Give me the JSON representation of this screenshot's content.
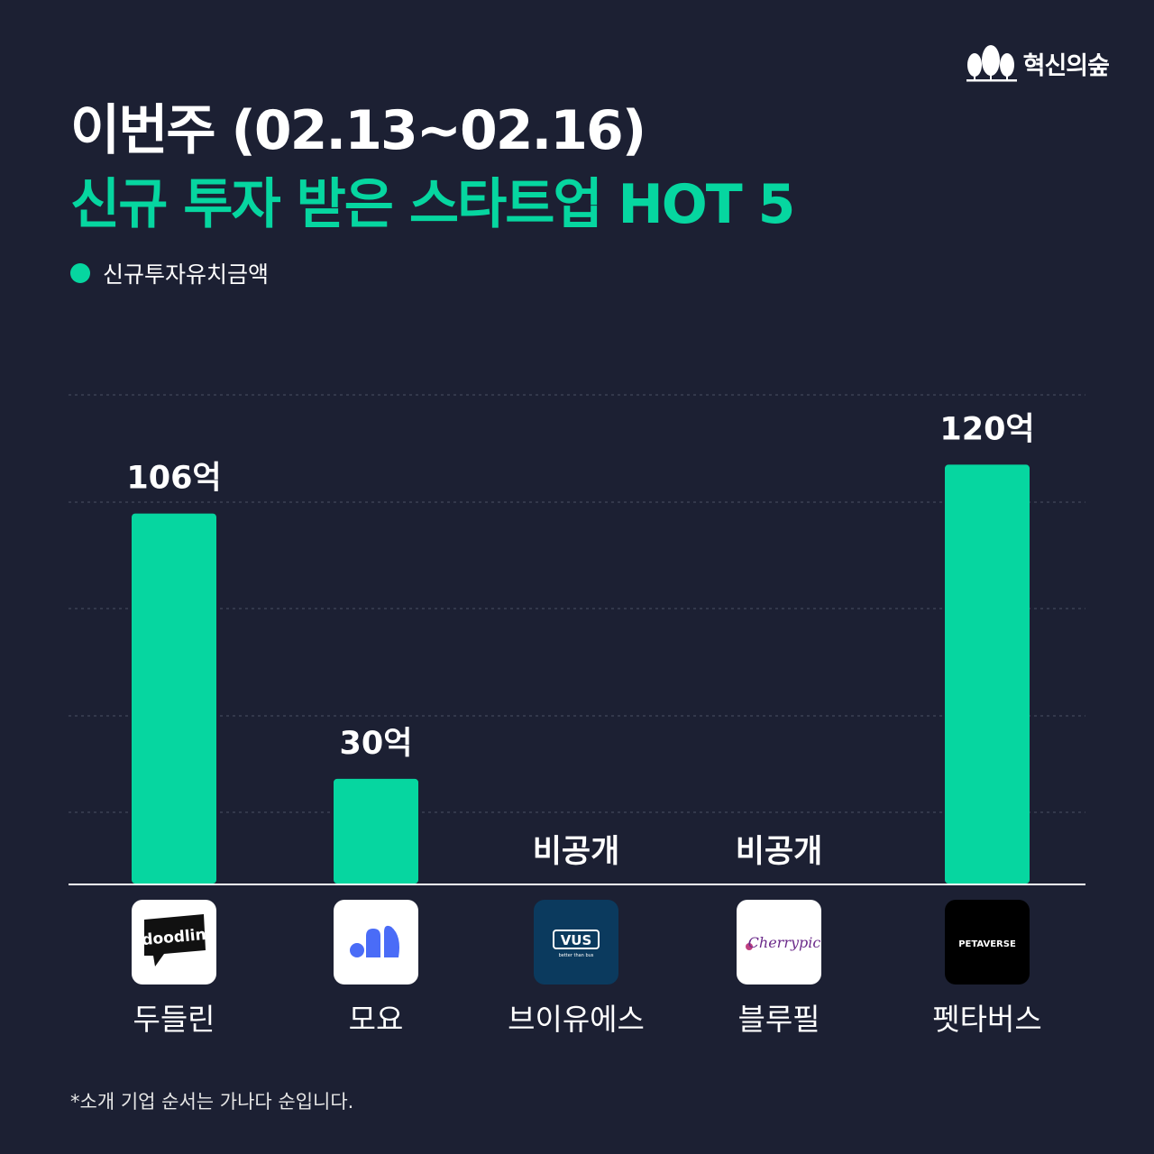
{
  "brand": {
    "name": "혁신의숲",
    "icon": "forest-trees-icon"
  },
  "header": {
    "title": "이번주 (02.13~02.16)",
    "subtitle": "신규 투자 받은 스타트업 HOT 5"
  },
  "colors": {
    "background": "#1c2033",
    "accent": "#06d6a0",
    "text": "#ffffff"
  },
  "chart_data": {
    "type": "bar",
    "title": "",
    "xlabel": "",
    "ylabel": "",
    "ylim": [
      0,
      140
    ],
    "grid": true,
    "legend": "top-left",
    "series": [
      {
        "name": "신규투자유치금액",
        "values": [
          106,
          30,
          null,
          null,
          120
        ],
        "value_labels": [
          "106억",
          "30억",
          "비공개",
          "비공개",
          "120억"
        ]
      }
    ],
    "categories": [
      "두들린",
      "모요",
      "브이유에스",
      "블루필",
      "펫타버스"
    ],
    "logos": [
      {
        "text": "doodlin",
        "bg": "#ffffff",
        "fg": "#ffffff"
      },
      {
        "text": "",
        "bg": "#ffffff",
        "fg": "#4a6cf7"
      },
      {
        "text": "VUS",
        "sub": "better than bus",
        "bg": "#0b3a5e",
        "fg": "#ffffff"
      },
      {
        "text": "Cherrypic",
        "bg": "#ffffff",
        "fg": "#6b2a8a"
      },
      {
        "text": "PETAVERSE",
        "bg": "#000000",
        "fg": "#ffffff"
      }
    ]
  },
  "footnote": "*소개 기업 순서는 가나다 순입니다."
}
